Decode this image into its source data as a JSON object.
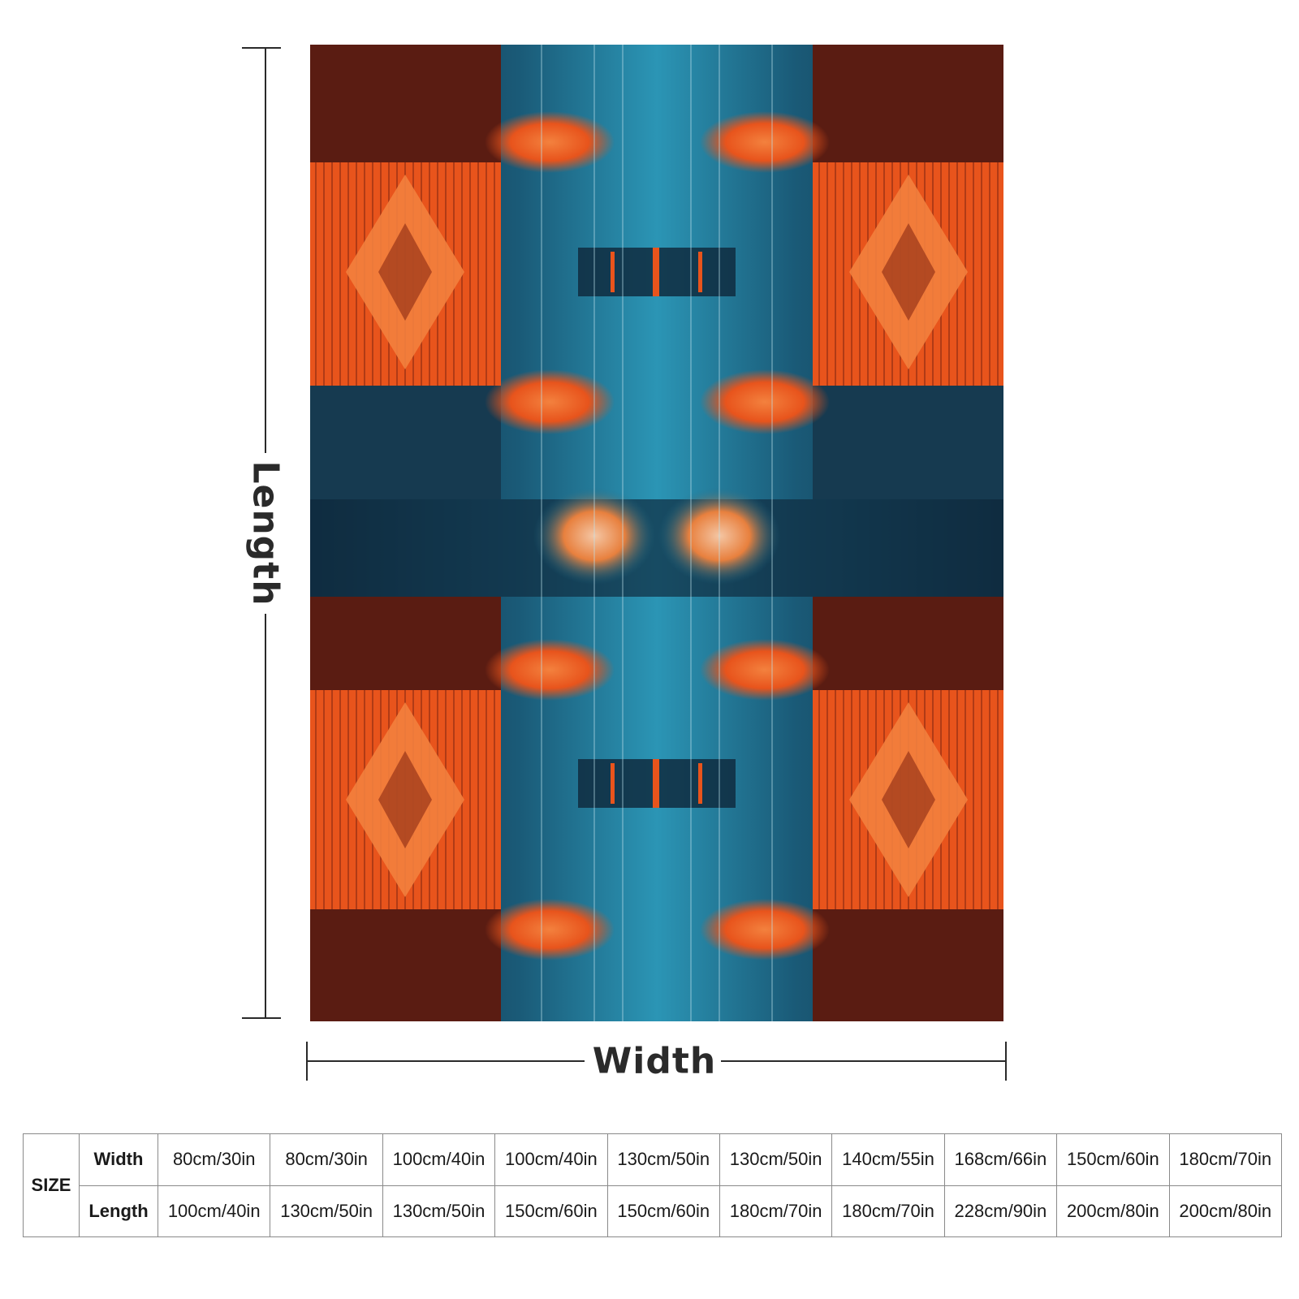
{
  "dimensions": {
    "length_label": "Length",
    "width_label": "Width"
  },
  "artwork": {
    "colors": {
      "navy": "#0f2c40",
      "teal": "#1e6f8c",
      "bright_teal": "#2b95b5",
      "orange": "#e8541c",
      "light_orange": "#f3813e",
      "dark_red": "#5a1c12"
    }
  },
  "size_table": {
    "size_label": "SIZE",
    "rows": [
      {
        "label": "Width",
        "values": [
          "80cm/30in",
          "80cm/30in",
          "100cm/40in",
          "100cm/40in",
          "130cm/50in",
          "130cm/50in",
          "140cm/55in",
          "168cm/66in",
          "150cm/60in",
          "180cm/70in"
        ]
      },
      {
        "label": "Length",
        "values": [
          "100cm/40in",
          "130cm/50in",
          "130cm/50in",
          "150cm/60in",
          "150cm/60in",
          "180cm/70in",
          "180cm/70in",
          "228cm/90in",
          "200cm/80in",
          "200cm/80in"
        ]
      }
    ]
  }
}
